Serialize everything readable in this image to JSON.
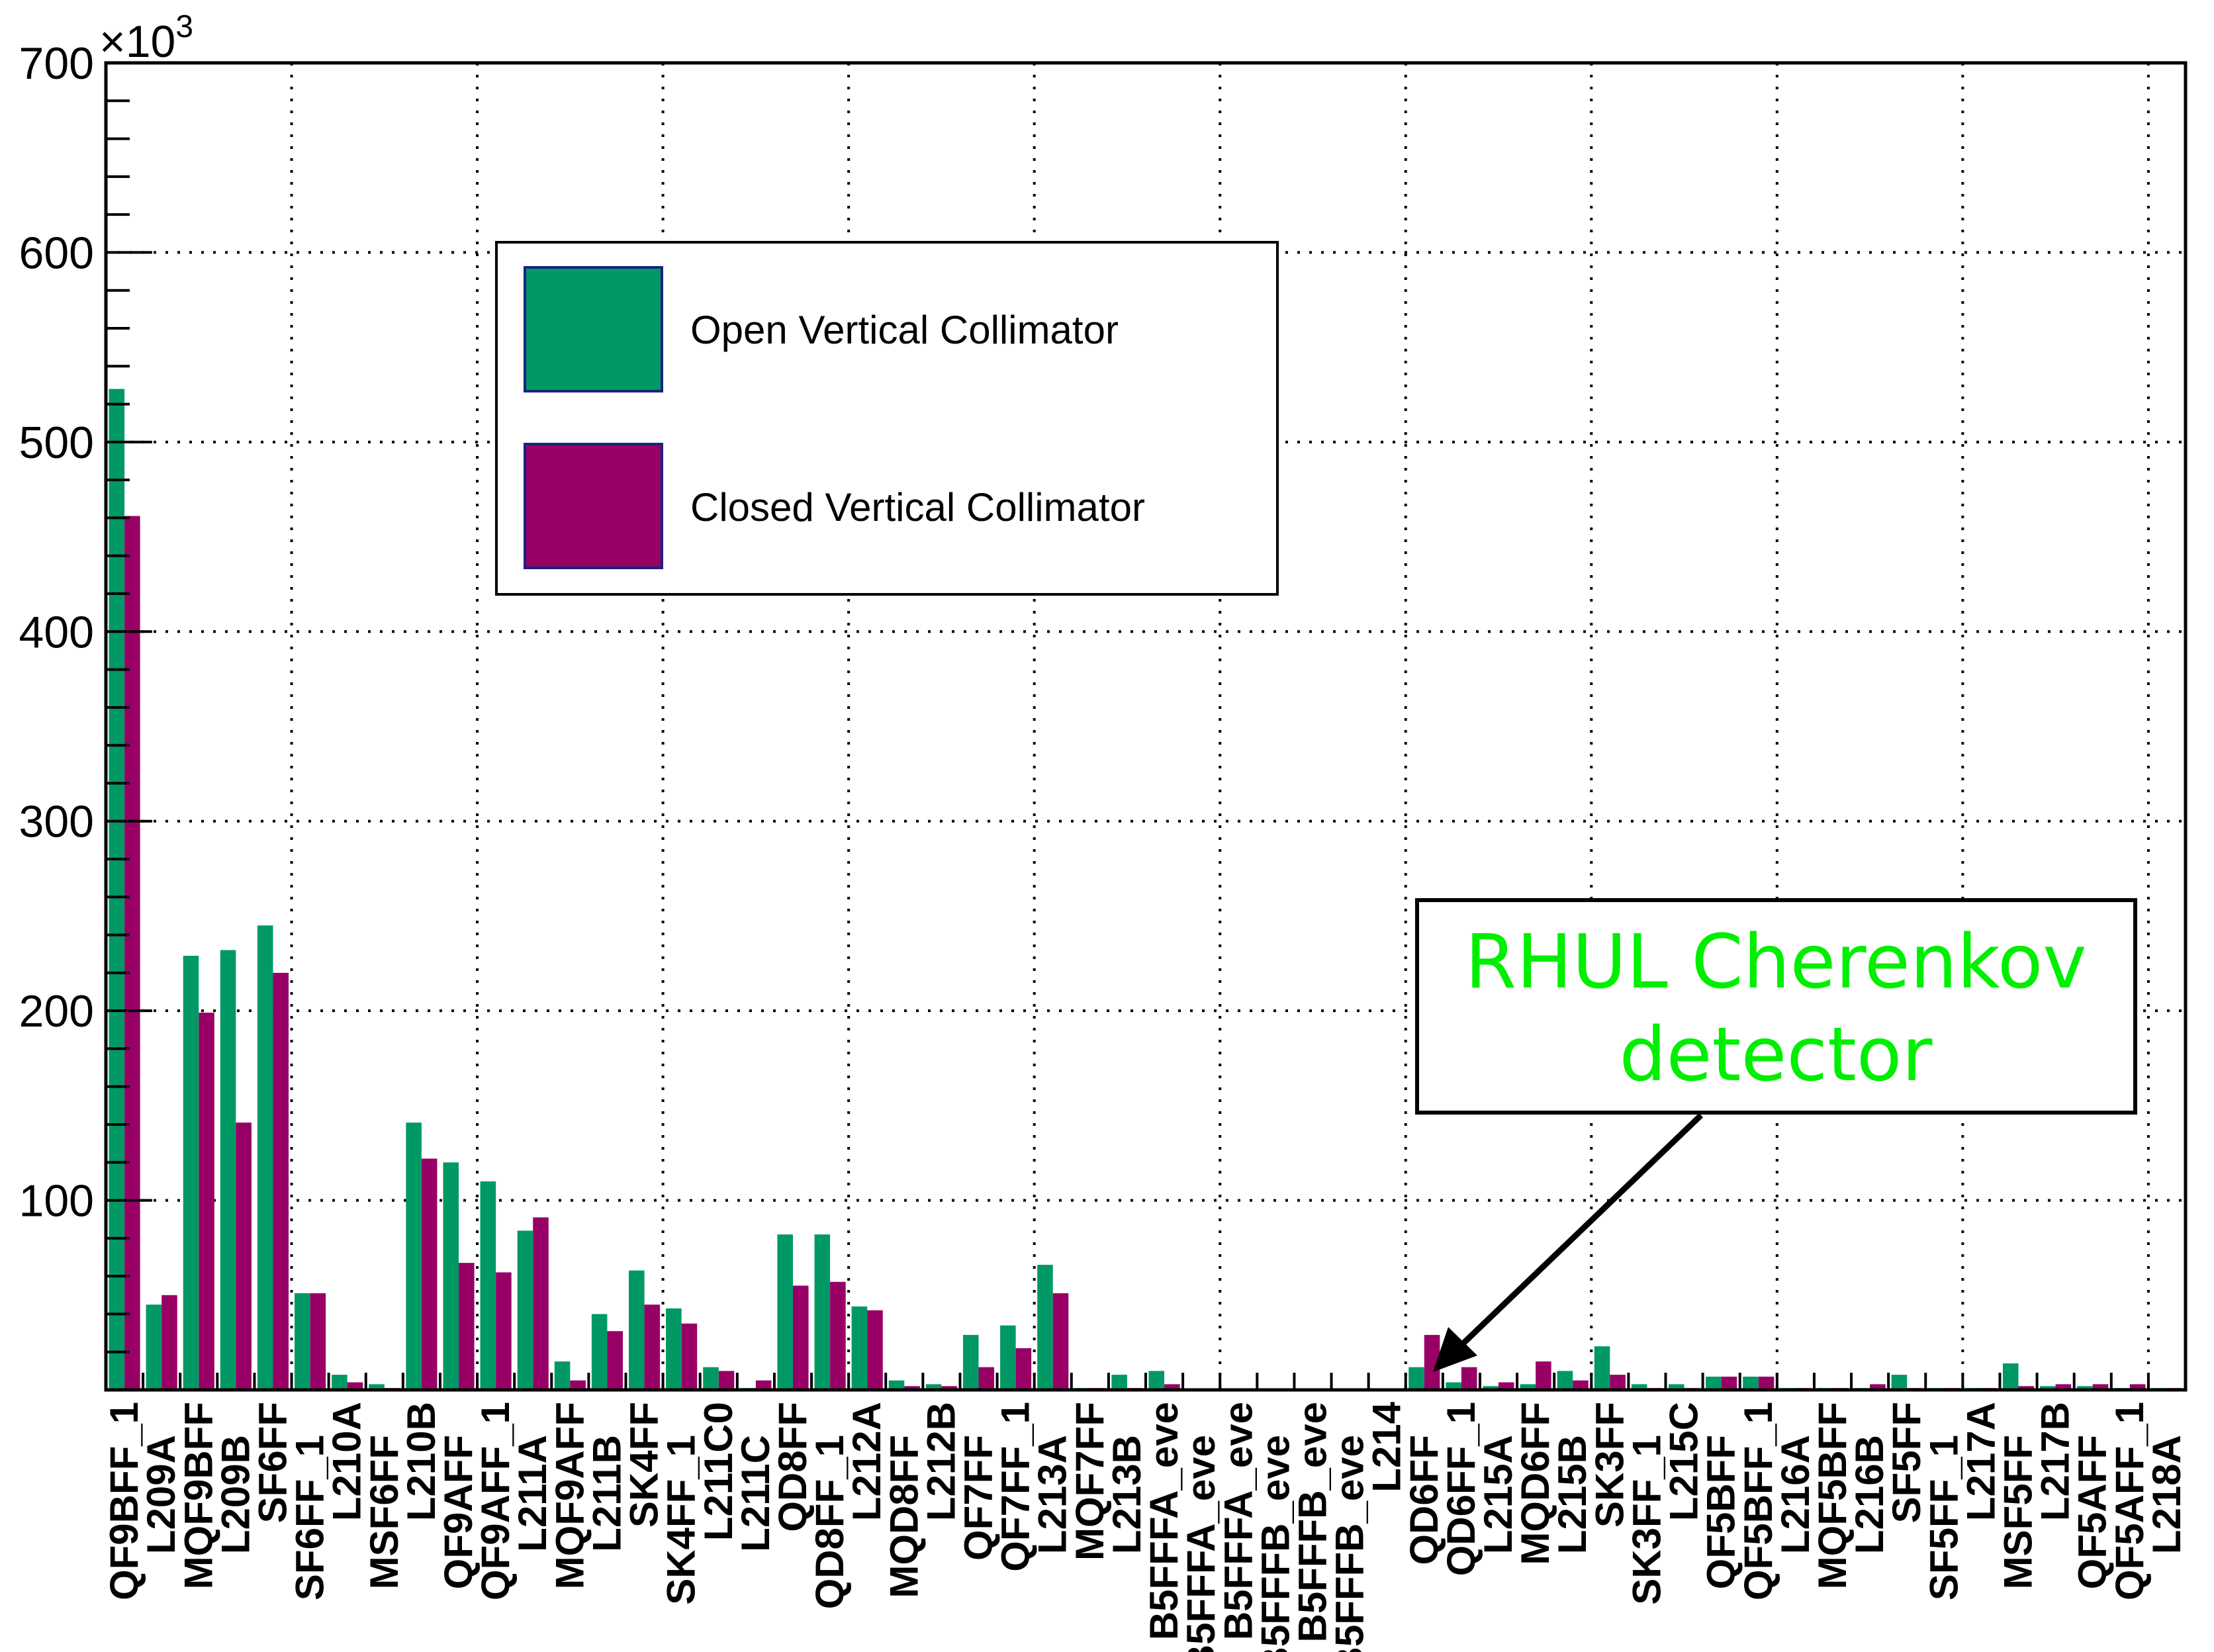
{
  "chart_data": {
    "type": "bar",
    "title": "",
    "xlabel": "",
    "ylabel": "",
    "y_multiplier_label": "×10",
    "y_multiplier_exponent": "3",
    "ylim": [
      0,
      700
    ],
    "yticks": [
      "100",
      "200",
      "300",
      "400",
      "500",
      "600",
      "700"
    ],
    "grid": true,
    "legend_position": "top-left-center",
    "categories": [
      "QF9BFF_1",
      "L209A",
      "MQF9BFF",
      "L209B",
      "SF6FF",
      "SF6FF_1",
      "L210A",
      "MSF6FF",
      "L210B",
      "QF9AFF",
      "QF9AFF_1",
      "L211A",
      "MQF9AFF",
      "L211B",
      "SK4FF",
      "SK4FF_1",
      "L211C0",
      "L211C",
      "QD8FF",
      "QD8FF_1",
      "L212A",
      "MQD8FF",
      "L212B",
      "QF7FF",
      "QF7FF_1",
      "L213A",
      "MQF7FF",
      "L213B",
      "B5FFFA_eve",
      "B5FFFA_eve",
      "B5FFFA_eve",
      "B5FFFB_eve",
      "B5FFFB_eve",
      "B5FFFB_eve",
      "L214",
      "QD6FF",
      "QD6FF_1",
      "L215A",
      "MQD6FF",
      "L215B",
      "SK3FF",
      "SK3FF_1",
      "L215C",
      "QF5BFF",
      "QF5BFF_1",
      "L216A",
      "MQF5BFF",
      "L216B",
      "SF5FF",
      "SF5FF_1",
      "L217A",
      "MSF5FF",
      "L217B",
      "QF5AFF",
      "QF5AFF_1",
      "L218A"
    ],
    "series": [
      {
        "name": "Open Vertical Collimator",
        "color": "#009966",
        "values": [
          528,
          45,
          229,
          232,
          245,
          51,
          8,
          3,
          141,
          120,
          110,
          84,
          15,
          40,
          63,
          43,
          12,
          1,
          82,
          82,
          44,
          5,
          3,
          29,
          34,
          66,
          1,
          8,
          10,
          0,
          0,
          0,
          0,
          0,
          0,
          12,
          4,
          2,
          3,
          10,
          23,
          3,
          3,
          7,
          7,
          1,
          1,
          1,
          8,
          1,
          1,
          14,
          2,
          2,
          1,
          1
        ]
      },
      {
        "name": "Closed Vertical Collimator",
        "color": "#990066",
        "values": [
          461,
          50,
          199,
          141,
          220,
          51,
          4,
          1,
          122,
          67,
          62,
          91,
          5,
          31,
          45,
          35,
          10,
          5,
          55,
          57,
          42,
          2,
          2,
          12,
          22,
          51,
          1,
          1,
          3,
          0,
          0,
          0,
          0,
          0,
          0,
          29,
          12,
          4,
          15,
          5,
          8,
          1,
          1,
          7,
          7,
          1,
          1,
          3,
          1,
          1,
          1,
          2,
          3,
          3,
          3,
          1
        ]
      }
    ],
    "annotation": {
      "text_line1": "RHUL Cherenkov",
      "text_line2": "detector",
      "color": "#00ee00",
      "points_to_category": "L214"
    }
  }
}
